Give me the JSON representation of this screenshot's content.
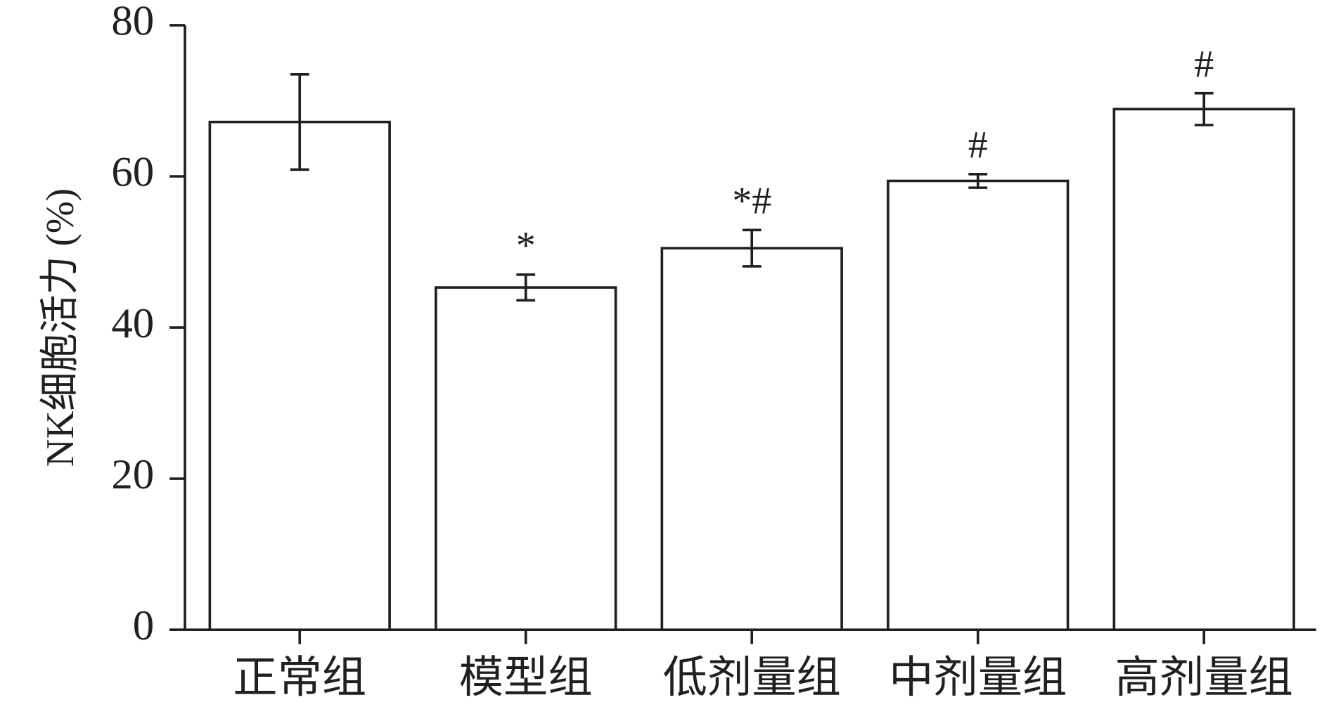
{
  "chart_data": {
    "type": "bar",
    "y_label": "NK细胞活力 (%)",
    "categories": [
      "正常组",
      "模型组",
      "低剂量组",
      "中剂量组",
      "高剂量组"
    ],
    "values": [
      67.2,
      45.3,
      50.5,
      59.4,
      68.9
    ],
    "errors": [
      6.3,
      1.7,
      2.4,
      0.9,
      2.1
    ],
    "annotations": [
      null,
      "*",
      "*#",
      "#",
      "#"
    ],
    "color": "#ffffff",
    "edge_color": "#231f20",
    "ylim": [
      0,
      80
    ],
    "yticks": [
      0,
      20,
      40,
      60,
      80
    ],
    "grid": false
  }
}
